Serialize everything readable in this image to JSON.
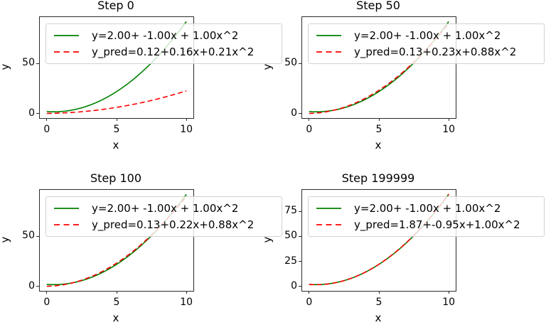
{
  "figure": {
    "background": "#ffffff",
    "axes_edge_color": "#2b2b2b",
    "legend_background": "rgba(255,255,255,0.8)"
  },
  "chart_data": [
    {
      "type": "line",
      "title": "Step 0",
      "xlabel": "x",
      "ylabel": "y",
      "xlim": [
        -0.5,
        10.5
      ],
      "ylim": [
        -4.5,
        96.5
      ],
      "xticks": [
        0,
        5,
        10
      ],
      "yticks": [
        0,
        50
      ],
      "grid": false,
      "legend_position": "upper left",
      "series": [
        {
          "name": "y=2.00+ -1.00x + 1.00x^2",
          "color": "#008000",
          "style": "solid",
          "coefficients": [
            2.0,
            -1.0,
            1.0
          ],
          "x_range": [
            0,
            10
          ]
        },
        {
          "name": "y_pred=0.12+0.16x+0.21x^2",
          "color": "#ff0000",
          "style": "dashed",
          "coefficients": [
            0.12,
            0.16,
            0.21
          ],
          "x_range": [
            0,
            10
          ]
        }
      ]
    },
    {
      "type": "line",
      "title": "Step 50",
      "xlabel": "x",
      "ylabel": "y",
      "xlim": [
        -0.5,
        10.5
      ],
      "ylim": [
        -4.5,
        96.5
      ],
      "xticks": [
        0,
        5,
        10
      ],
      "yticks": [
        0,
        50
      ],
      "grid": false,
      "legend_position": "upper left",
      "series": [
        {
          "name": "y=2.00+ -1.00x + 1.00x^2",
          "color": "#008000",
          "style": "solid",
          "coefficients": [
            2.0,
            -1.0,
            1.0
          ],
          "x_range": [
            0,
            10
          ]
        },
        {
          "name": "y_pred=0.13+0.23x+0.88x^2",
          "color": "#ff0000",
          "style": "dashed",
          "coefficients": [
            0.13,
            0.23,
            0.88
          ],
          "x_range": [
            0,
            10
          ]
        }
      ]
    },
    {
      "type": "line",
      "title": "Step 100",
      "xlabel": "x",
      "ylabel": "y",
      "xlim": [
        -0.5,
        10.5
      ],
      "ylim": [
        -4.5,
        96.5
      ],
      "xticks": [
        0,
        5,
        10
      ],
      "yticks": [
        0,
        50
      ],
      "grid": false,
      "legend_position": "upper left",
      "series": [
        {
          "name": "y=2.00+ -1.00x + 1.00x^2",
          "color": "#008000",
          "style": "solid",
          "coefficients": [
            2.0,
            -1.0,
            1.0
          ],
          "x_range": [
            0,
            10
          ]
        },
        {
          "name": "y_pred=0.13+0.22x+0.88x^2",
          "color": "#ff0000",
          "style": "dashed",
          "coefficients": [
            0.13,
            0.22,
            0.88
          ],
          "x_range": [
            0,
            10
          ]
        }
      ]
    },
    {
      "type": "line",
      "title": "Step 199999",
      "xlabel": "x",
      "ylabel": "y",
      "xlim": [
        -0.5,
        10.5
      ],
      "ylim": [
        -4.5,
        96.5
      ],
      "xticks": [
        0,
        5,
        10
      ],
      "yticks": [
        0,
        25,
        50,
        75
      ],
      "grid": false,
      "legend_position": "upper left",
      "series": [
        {
          "name": "y=2.00+ -1.00x + 1.00x^2",
          "color": "#008000",
          "style": "solid",
          "coefficients": [
            2.0,
            -1.0,
            1.0
          ],
          "x_range": [
            0,
            10
          ]
        },
        {
          "name": "y_pred=1.87+-0.95x+1.00x^2",
          "color": "#ff0000",
          "style": "dashed",
          "coefficients": [
            1.87,
            -0.95,
            1.0
          ],
          "x_range": [
            0,
            10
          ]
        }
      ]
    }
  ]
}
